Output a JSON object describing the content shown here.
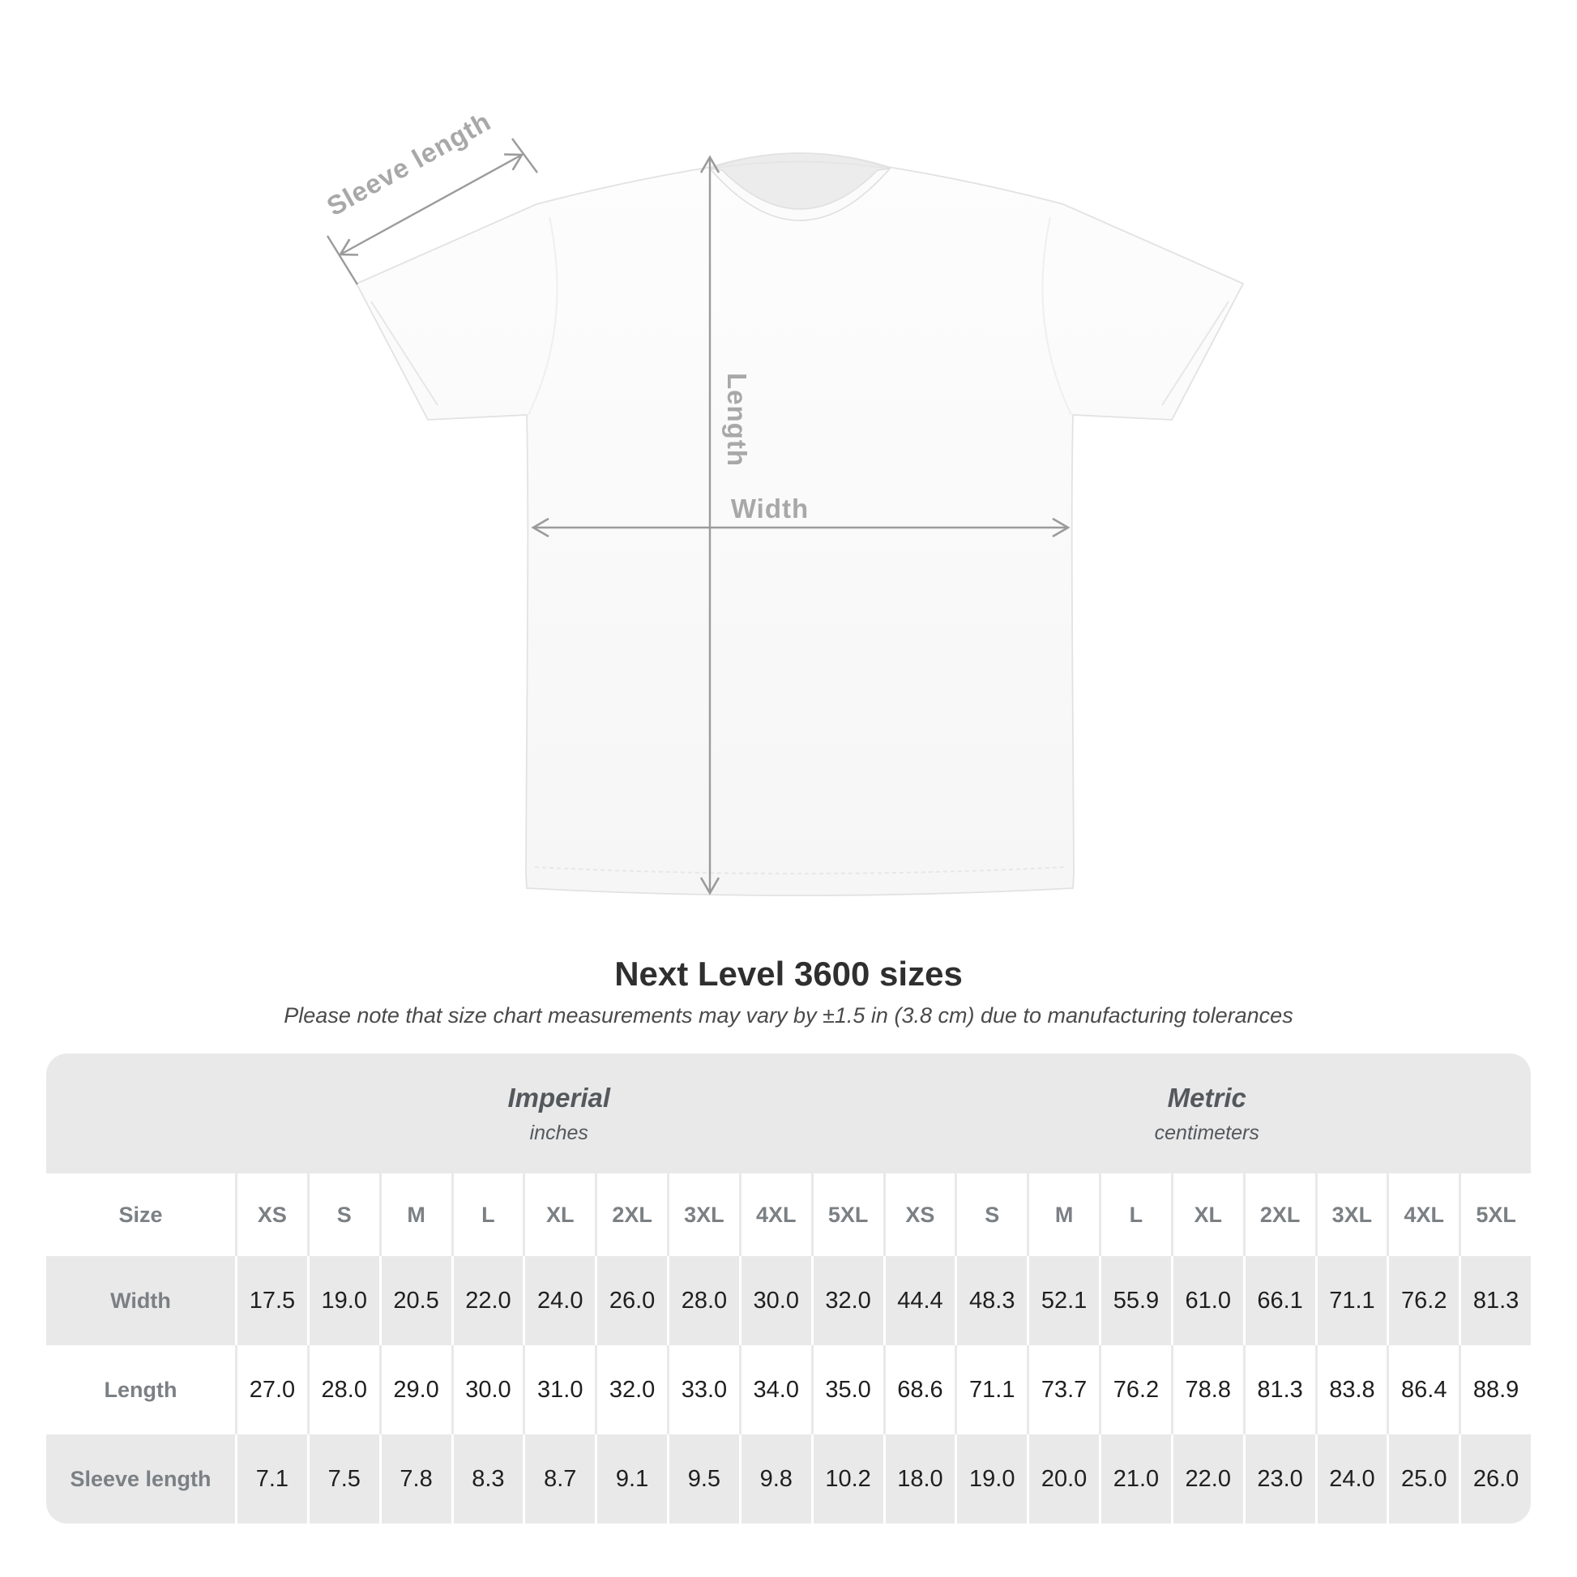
{
  "illustration": {
    "sleeve_length_label": "Sleeve length",
    "length_label": "Length",
    "width_label": "Width"
  },
  "heading": {
    "title": "Next Level 3600 sizes",
    "subtitle": "Please note that size chart measurements may vary by ±1.5 in (3.8 cm) due to manufacturing tolerances"
  },
  "size_table": {
    "corner_label": "Size",
    "unit_groups": [
      {
        "name": "Imperial",
        "unit": "inches"
      },
      {
        "name": "Metric",
        "unit": "centimeters"
      }
    ],
    "sizes": [
      "XS",
      "S",
      "M",
      "L",
      "XL",
      "2XL",
      "3XL",
      "4XL",
      "5XL"
    ],
    "rows": [
      {
        "label": "Width",
        "imperial": [
          "17.5",
          "19.0",
          "20.5",
          "22.0",
          "24.0",
          "26.0",
          "28.0",
          "30.0",
          "32.0"
        ],
        "metric": [
          "44.4",
          "48.3",
          "52.1",
          "55.9",
          "61.0",
          "66.1",
          "71.1",
          "76.2",
          "81.3"
        ]
      },
      {
        "label": "Length",
        "imperial": [
          "27.0",
          "28.0",
          "29.0",
          "30.0",
          "31.0",
          "32.0",
          "33.0",
          "34.0",
          "35.0"
        ],
        "metric": [
          "68.6",
          "71.1",
          "73.7",
          "76.2",
          "78.8",
          "81.3",
          "83.8",
          "86.4",
          "88.9"
        ]
      },
      {
        "label": "Sleeve length",
        "imperial": [
          "7.1",
          "7.5",
          "7.8",
          "8.3",
          "8.7",
          "9.1",
          "9.5",
          "9.8",
          "10.2"
        ],
        "metric": [
          "18.0",
          "19.0",
          "20.0",
          "21.0",
          "22.0",
          "23.0",
          "24.0",
          "25.0",
          "26.0"
        ]
      }
    ]
  },
  "colors": {
    "table_background": "#e9e9e9",
    "row_alt": "#ffffff",
    "number_text": "#1f1f1f",
    "header_text": "#7b8084",
    "unit_header_text": "#54585c",
    "title_text": "#2f2f2f",
    "subtitle_text": "#4a4a4a",
    "arrow": "#9b9b9b",
    "diagram_label": "#a8a8a8",
    "shirt_outline": "#e2e2e2"
  }
}
